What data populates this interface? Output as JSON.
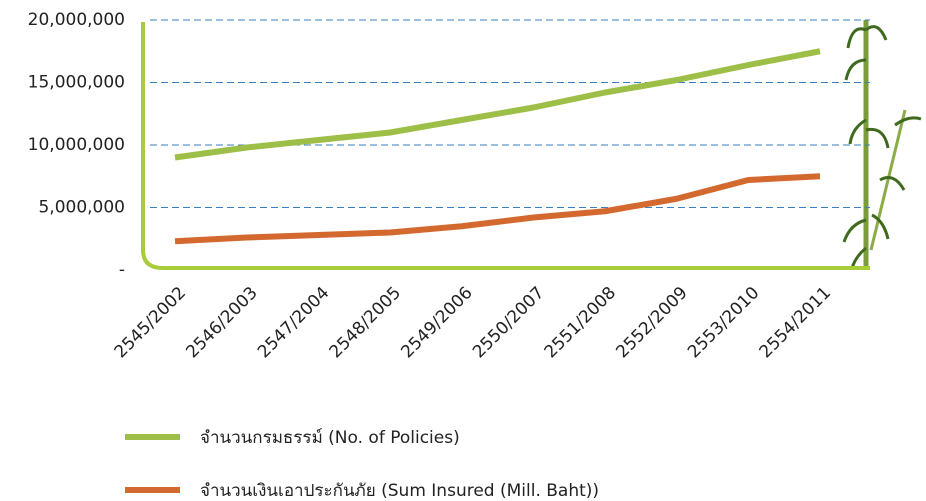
{
  "chart_data": {
    "type": "line",
    "categories": [
      "2545/2002",
      "2546/2003",
      "2547/2004",
      "2548/2005",
      "2549/2006",
      "2550/2007",
      "2551/2008",
      "2552/2009",
      "2553/2010",
      "2554/2011"
    ],
    "series": [
      {
        "name": "จำนวนกรมธรรม์ (No. of Policies)",
        "color": "#9dbf47",
        "values": [
          9000000,
          9800000,
          10400000,
          11000000,
          12000000,
          13000000,
          14200000,
          15200000,
          16400000,
          17500000
        ]
      },
      {
        "name": "จำนวนเงินเอาประกันภัย (Sum Insured (Mill. Baht))",
        "color": "#d4692f",
        "values": [
          2300000,
          2600000,
          2800000,
          3000000,
          3500000,
          4200000,
          4700000,
          5700000,
          7200000,
          7500000
        ]
      }
    ],
    "ylim": [
      0,
      20000000
    ],
    "yticks": [
      {
        "value": 0,
        "label": "-"
      },
      {
        "value": 5000000,
        "label": "5,000,000"
      },
      {
        "value": 10000000,
        "label": "10,000,000"
      },
      {
        "value": 15000000,
        "label": "15,000,000"
      },
      {
        "value": 20000000,
        "label": "20,000,000"
      }
    ],
    "grid": true
  }
}
